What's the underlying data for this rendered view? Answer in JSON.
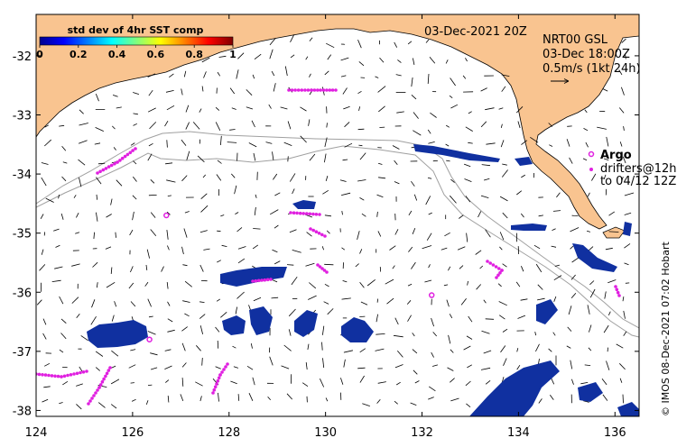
{
  "map": {
    "date_label": "03-Dec-2021 20Z",
    "product": {
      "line1": "NRT00 GSL",
      "line2": "03-Dec 18:00Z",
      "line3": "0.5m/s (1kt 24h)"
    },
    "colorbar": {
      "title": "std dev of 4hr SST comp",
      "tick_labels": [
        "0",
        "0.2",
        "0.4",
        "0.6",
        "0.8",
        "1"
      ],
      "range": [
        0,
        1
      ]
    },
    "legend": {
      "argo_label": "Argo",
      "drifters_line1": "drifters@12h",
      "drifters_line2": "to 04/12 12Z"
    },
    "credit": "© IMOS 08-Dec-2021 07:02 Hobart",
    "x_axis": {
      "range": [
        124,
        136.5
      ],
      "tick_labels": [
        "124",
        "126",
        "128",
        "130",
        "132",
        "134",
        "136"
      ]
    },
    "y_axis": {
      "range": [
        -38.1,
        -31.3
      ],
      "tick_labels": [
        "-32",
        "-33",
        "-34",
        "-35",
        "-36",
        "-37",
        "-38"
      ]
    },
    "colors": {
      "land": "#f9c490",
      "argo": "#e020e0",
      "drifter": "#e020e0",
      "data_patch": "#1030a0",
      "isobath": "#a0a0a0"
    },
    "argo_floats": [
      {
        "lon": 126.7,
        "lat": -34.7
      },
      {
        "lon": 126.35,
        "lat": -36.8
      },
      {
        "lon": 132.2,
        "lat": -36.05
      }
    ]
  }
}
